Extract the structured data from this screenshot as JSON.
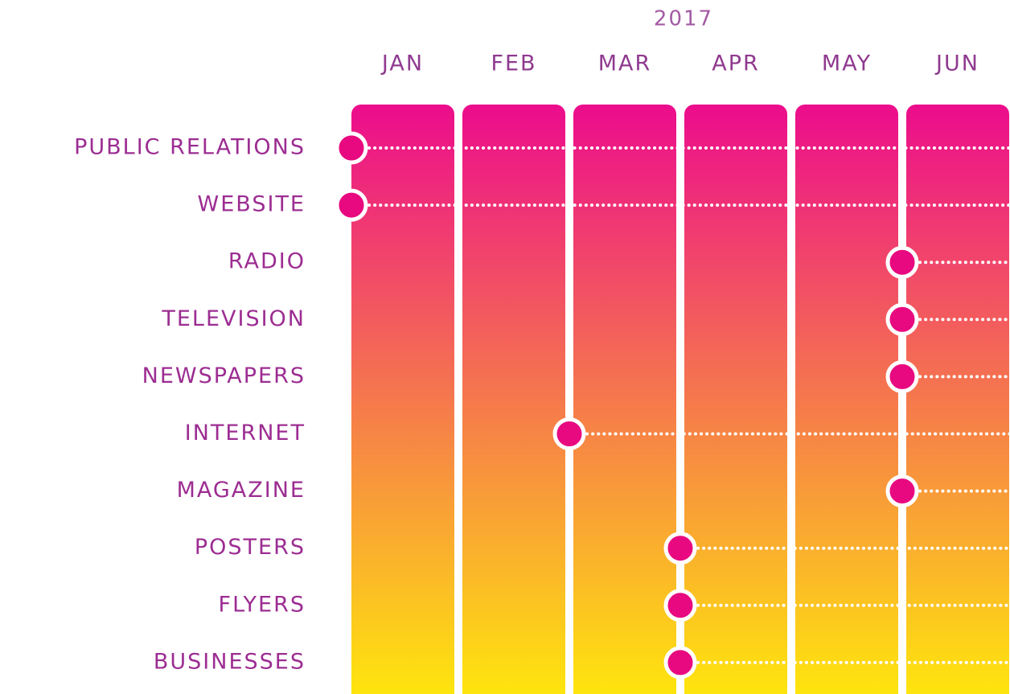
{
  "chart_data": {
    "type": "timeline",
    "title": "2017",
    "x": [
      "JAN",
      "FEB",
      "MAR",
      "APR",
      "MAY",
      "JUN"
    ],
    "categories": [
      "PUBLIC RELATIONS",
      "WEBSITE",
      "RADIO",
      "TELEVISION",
      "NEWSPAPERS",
      "INTERNET",
      "MAGAZINE",
      "POSTERS",
      "FLYERS",
      "BUSINESSES"
    ],
    "starts": [
      "JAN",
      "JAN",
      "JUN",
      "JUN",
      "JUN",
      "MAR",
      "JUN",
      "APR",
      "APR",
      "APR"
    ],
    "color": "#e8087f",
    "gradient": [
      "#ec0c8c",
      "#ffeb0a"
    ],
    "label_color": "#9c2d92"
  }
}
